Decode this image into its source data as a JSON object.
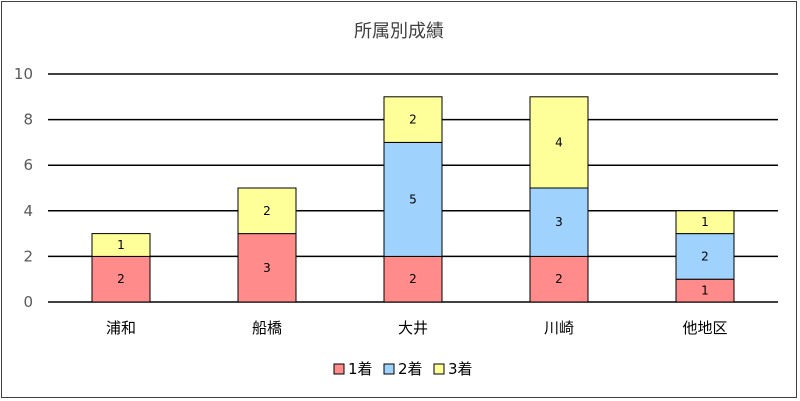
{
  "chart_data": {
    "type": "bar",
    "stacked": true,
    "title": "所属別成績",
    "categories": [
      "浦和",
      "船橋",
      "大井",
      "川崎",
      "他地区"
    ],
    "series": [
      {
        "name": "1着",
        "color": "#ff8b8b",
        "values": [
          2,
          3,
          2,
          2,
          1
        ]
      },
      {
        "name": "2着",
        "color": "#9fd3fd",
        "values": [
          0,
          0,
          5,
          3,
          2
        ]
      },
      {
        "name": "3着",
        "color": "#ffff99",
        "values": [
          1,
          2,
          2,
          4,
          1
        ]
      }
    ],
    "ylim": [
      0,
      10
    ],
    "yticks": [
      0,
      2,
      4,
      6,
      8,
      10
    ],
    "grid": true,
    "legend_position": "bottom"
  }
}
